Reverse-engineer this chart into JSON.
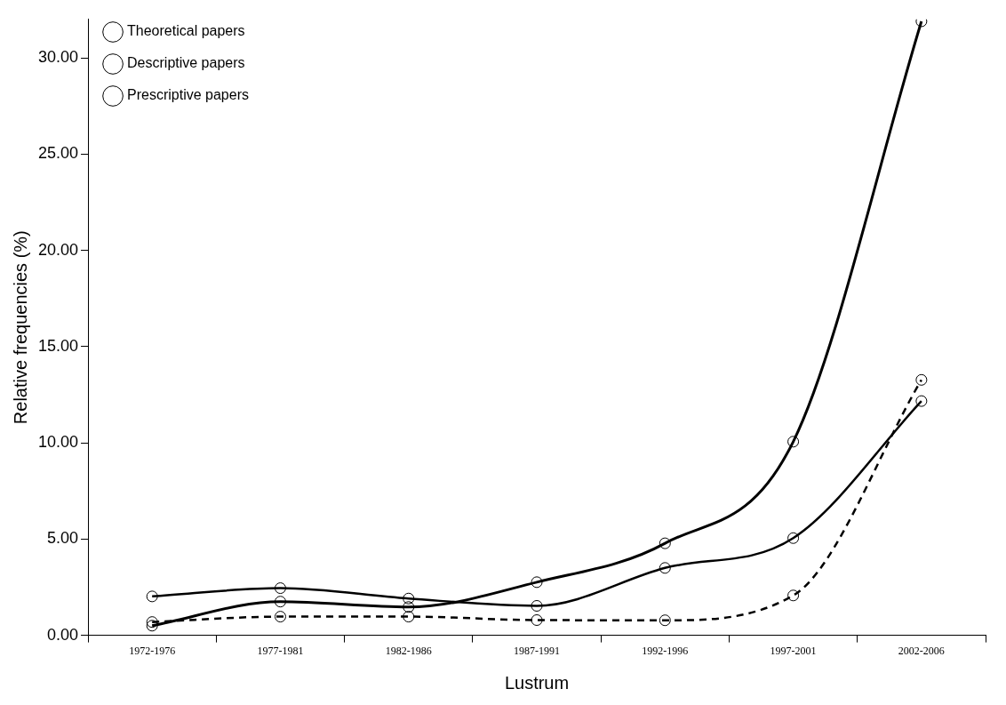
{
  "chart_data": {
    "type": "line",
    "xlabel": "Lustrum",
    "ylabel": "Relative frequencies (%)",
    "categories": [
      "1972-1976",
      "1977-1981",
      "1982-1986",
      "1987-1991",
      "1992-1996",
      "1997-2001",
      "2002-2006"
    ],
    "series": [
      {
        "name": "Theoretical papers",
        "color": "#000000",
        "line_style": "solid",
        "values": [
          2.02,
          2.45,
          1.91,
          1.53,
          3.5,
          5.05,
          12.17
        ]
      },
      {
        "name": "Descriptive papers",
        "color": "#000000",
        "line_style": "dashed",
        "values": [
          0.69,
          0.97,
          0.97,
          0.79,
          0.78,
          2.07,
          13.27
        ]
      },
      {
        "name": "Prescriptive papers",
        "color": "#000000",
        "line_style": "solid",
        "values": [
          0.5,
          1.75,
          1.47,
          2.76,
          4.78,
          10.06,
          31.9
        ]
      }
    ],
    "ylim": [
      0,
      32
    ],
    "yticks": [
      {
        "value": 0,
        "label": "0.00"
      },
      {
        "value": 5,
        "label": "5.00"
      },
      {
        "value": 10,
        "label": "10.00"
      },
      {
        "value": 15,
        "label": "15.00"
      },
      {
        "value": 20,
        "label": "20.00"
      },
      {
        "value": 25,
        "label": "25.00"
      },
      {
        "value": 30,
        "label": "30.00"
      }
    ],
    "grid": false,
    "legend": "top left",
    "marker": "circle"
  }
}
